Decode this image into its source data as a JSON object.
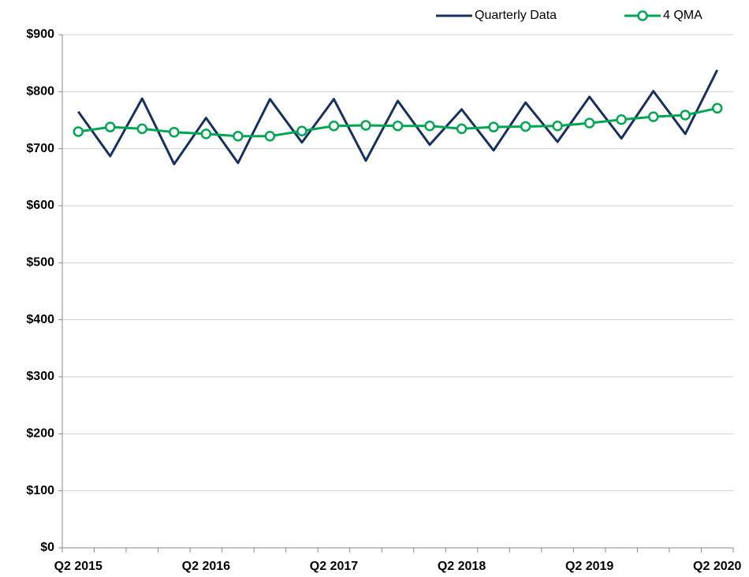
{
  "chart_data": {
    "type": "line",
    "categories": [
      "Q2 2015",
      null,
      null,
      null,
      "Q2 2016",
      null,
      null,
      null,
      "Q2 2017",
      null,
      null,
      null,
      "Q2 2018",
      null,
      null,
      null,
      "Q2 2019",
      null,
      null,
      null,
      "Q2 2020"
    ],
    "series": [
      {
        "name": "Quarterly Data",
        "color": "#17305e",
        "marker": false,
        "values": [
          765,
          687,
          788,
          673,
          754,
          675,
          787,
          711,
          787,
          679,
          784,
          707,
          769,
          697,
          781,
          712,
          791,
          718,
          801,
          726,
          838
        ]
      },
      {
        "name": "4 QMA",
        "color": "#00a651",
        "marker": true,
        "values": [
          730,
          738,
          735,
          729,
          726,
          722,
          722,
          731,
          740,
          741,
          740,
          740,
          735,
          738,
          739,
          740,
          745,
          751,
          756,
          759,
          771
        ]
      }
    ],
    "ylim": [
      0,
      900
    ],
    "yticks": [
      {
        "value": 0,
        "label": "$0"
      },
      {
        "value": 100,
        "label": "$100"
      },
      {
        "value": 200,
        "label": "$200"
      },
      {
        "value": 300,
        "label": "$300"
      },
      {
        "value": 400,
        "label": "$400"
      },
      {
        "value": 500,
        "label": "$500"
      },
      {
        "value": 600,
        "label": "$600"
      },
      {
        "value": 700,
        "label": "$700"
      },
      {
        "value": 800,
        "label": "$800"
      },
      {
        "value": 900,
        "label": "$900"
      }
    ],
    "grid": true,
    "legend": "top-right"
  }
}
